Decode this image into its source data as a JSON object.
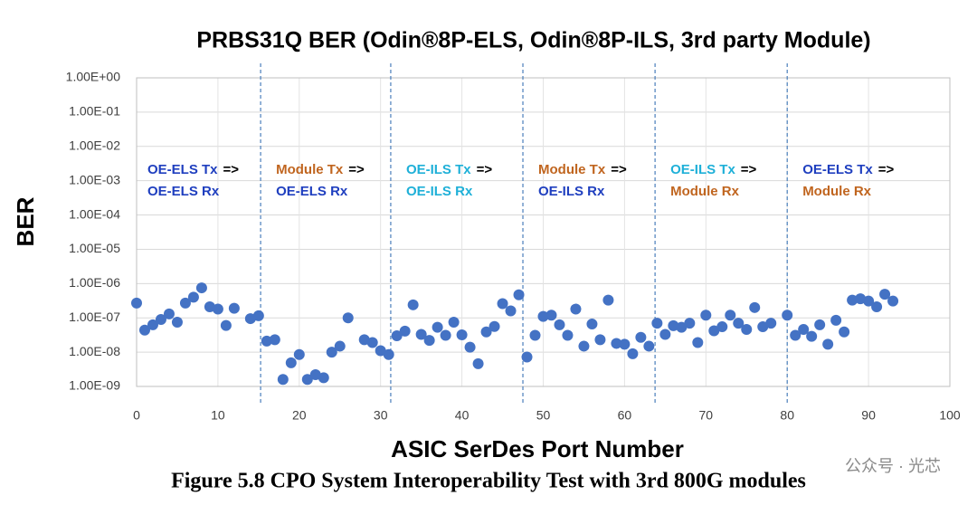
{
  "chart_data": {
    "type": "scatter",
    "title": "PRBS31Q BER (Odin®8P-ELS, Odin®8P-ILS, 3rd party Module)",
    "x_label": "ASIC SerDes Port Number",
    "y_label": "BER",
    "caption": "Figure 5.8 CPO System Interoperability Test with 3rd 800G modules",
    "watermark": "公众号 · 光芯",
    "log_y": true,
    "grid": true,
    "xlim": [
      0,
      100
    ],
    "xticks": [
      0,
      10,
      20,
      30,
      40,
      50,
      60,
      70,
      80,
      90,
      100
    ],
    "ylim": [
      1e-09,
      1
    ],
    "yticks": [
      {
        "value": 1e-09,
        "label": "1.00E-09"
      },
      {
        "value": 1e-08,
        "label": "1.00E-08"
      },
      {
        "value": 1e-07,
        "label": "1.00E-07"
      },
      {
        "value": 1e-06,
        "label": "1.00E-06"
      },
      {
        "value": 1e-05,
        "label": "1.00E-05"
      },
      {
        "value": 0.0001,
        "label": "1.00E-04"
      },
      {
        "value": 0.001,
        "label": "1.00E-03"
      },
      {
        "value": 0.01,
        "label": "1.00E-02"
      },
      {
        "value": 0.1,
        "label": "1.00E-01"
      },
      {
        "value": 1,
        "label": "1.00E+00"
      }
    ],
    "dividers": [
      15.25,
      31.25,
      47.5,
      63.75,
      80
    ],
    "annotations": [
      {
        "tx": "OE-ELS Tx",
        "tx_color": "#1f3fbf",
        "arrow": "=>",
        "rx": "OE-ELS Rx",
        "rx_color": "#1f3fbf"
      },
      {
        "tx": "Module Tx",
        "tx_color": "#c0651f",
        "arrow": "=>",
        "rx": "OE-ELS Rx",
        "rx_color": "#1f3fbf"
      },
      {
        "tx": "OE-ILS Tx",
        "tx_color": "#1fb0d8",
        "arrow": "=>",
        "rx": "OE-ILS  Rx",
        "rx_color": "#1fb0d8"
      },
      {
        "tx": "Module Tx",
        "tx_color": "#c0651f",
        "arrow": "=>",
        "rx": "OE-ILS Rx",
        "rx_color": "#1f3fbf"
      },
      {
        "tx": "OE-ILS Tx",
        "tx_color": "#1fb0d8",
        "arrow": "=>",
        "rx": "Module Rx",
        "rx_color": "#c0651f"
      },
      {
        "tx": "OE-ELS Tx",
        "tx_color": "#1f3fbf",
        "arrow": "=>",
        "rx": "Module Rx",
        "rx_color": "#c0651f"
      }
    ],
    "series": [
      {
        "color": "#4472c4",
        "x": [
          0,
          1,
          2,
          3,
          4,
          5,
          6,
          7,
          8,
          9,
          10,
          11,
          12,
          14,
          15,
          16,
          17,
          18,
          19,
          20,
          21,
          22,
          23,
          24,
          25,
          26,
          28,
          29,
          30,
          31,
          32,
          33,
          34,
          35,
          36,
          37,
          38,
          39,
          40,
          41,
          42,
          43,
          44,
          45,
          46,
          47,
          48,
          49,
          50,
          51,
          52,
          53,
          54,
          55,
          56,
          57,
          58,
          59,
          60,
          61,
          62,
          63,
          64,
          65,
          66,
          67,
          68,
          69,
          70,
          71,
          72,
          73,
          74,
          75,
          76,
          77,
          78,
          80,
          81,
          82,
          83,
          84,
          85,
          86,
          87,
          88,
          89,
          90,
          91,
          92,
          93
        ],
        "values": [
          2.7e-07,
          4.4e-08,
          6.3e-08,
          9e-08,
          1.3e-07,
          7.5e-08,
          2.7e-07,
          4e-07,
          7.5e-07,
          2.1e-07,
          1.8e-07,
          6e-08,
          1.9e-07,
          9.5e-08,
          1.15e-07,
          2.1e-08,
          2.3e-08,
          1.6e-09,
          4.9e-09,
          8.5e-09,
          1.6e-09,
          2.2e-09,
          1.8e-09,
          1e-08,
          1.5e-08,
          1e-07,
          2.3e-08,
          1.9e-08,
          1.1e-08,
          8.5e-09,
          3e-08,
          4.1e-08,
          2.4e-07,
          3.3e-08,
          2.2e-08,
          5.3e-08,
          3.1e-08,
          7.5e-08,
          3.2e-08,
          1.4e-08,
          4.6e-09,
          3.9e-08,
          5.6e-08,
          2.6e-07,
          1.6e-07,
          4.7e-07,
          7.2e-09,
          3.1e-08,
          1.1e-07,
          1.2e-07,
          6.3e-08,
          3.1e-08,
          1.8e-07,
          1.5e-08,
          6.6e-08,
          2.3e-08,
          3.3e-07,
          1.8e-08,
          1.7e-08,
          9e-09,
          2.7e-08,
          1.5e-08,
          7e-08,
          3.3e-08,
          5.9e-08,
          5.3e-08,
          7e-08,
          1.9e-08,
          1.2e-07,
          4.2e-08,
          5.5e-08,
          1.2e-07,
          7e-08,
          4.6e-08,
          2e-07,
          5.5e-08,
          7e-08,
          1.2e-07,
          3.1e-08,
          4.6e-08,
          2.9e-08,
          6.3e-08,
          1.7e-08,
          8.5e-08,
          3.9e-08,
          3.3e-07,
          3.6e-07,
          3.1e-07,
          2.1e-07,
          4.9e-07,
          3.1e-07
        ]
      }
    ]
  }
}
